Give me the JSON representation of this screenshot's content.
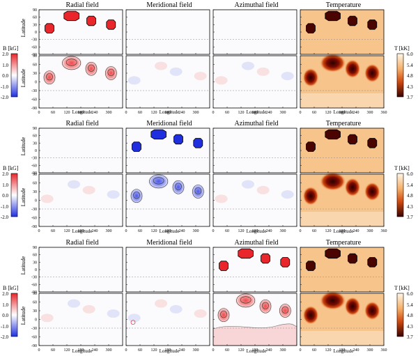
{
  "figure": {
    "column_titles": [
      "Radial field",
      "Meridional field",
      "Azimuthal field",
      "Temperature"
    ],
    "ylabel": "Latitude",
    "xlabel": "Longitude",
    "lat_ticks": [
      "90",
      "60",
      "30",
      "0",
      "-30",
      "-60",
      "-90"
    ],
    "lon_ticks": [
      "0",
      "60",
      "120",
      "180",
      "240",
      "300",
      "360"
    ],
    "b_label": "B [kG]",
    "b_ticks": [
      "2.0",
      "1.0",
      "0.0",
      "-1.0",
      "-2.0"
    ],
    "t_label": "T [kK]",
    "t_ticks": [
      "6.0",
      "5.4",
      "4.8",
      "4.3",
      "3.7"
    ],
    "colors": {
      "positive": "#e8262b",
      "positive_light": "#f7c6c6",
      "negative": "#1f2fe0",
      "negative_light": "#c8ccf5",
      "temp_bg": "#f7c48c",
      "temp_dark": "#4a0500",
      "temp_mid": "#c03000"
    }
  },
  "spots": [
    {
      "lon": 45,
      "lat": 15,
      "rlon": 15,
      "rlat": 15
    },
    {
      "lon": 140,
      "lat": 65,
      "rlon": 28,
      "rlat": 15
    },
    {
      "lon": 225,
      "lat": 45,
      "rlon": 15,
      "rlat": 15
    },
    {
      "lon": 310,
      "lat": 30,
      "rlon": 15,
      "rlat": 15
    }
  ],
  "row_groups": [
    {
      "component": "radial",
      "sign": 1
    },
    {
      "component": "meridional",
      "sign": -1
    },
    {
      "component": "azimuthal",
      "sign": 1
    }
  ]
}
